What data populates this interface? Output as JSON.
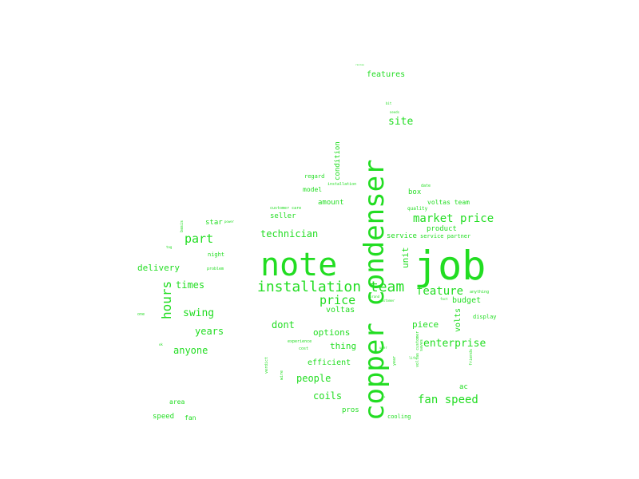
{
  "style": {
    "word_color": "#22dd22",
    "background": "#ffffff"
  },
  "words": [
    {
      "text": "copper condenser"
    },
    {
      "text": "job"
    },
    {
      "text": "note"
    },
    {
      "text": "installation team"
    },
    {
      "text": "market price"
    },
    {
      "text": "fan speed"
    },
    {
      "text": "hours"
    },
    {
      "text": "price"
    },
    {
      "text": "part"
    },
    {
      "text": "feature"
    },
    {
      "text": "enterprise"
    },
    {
      "text": "site"
    },
    {
      "text": "technician"
    },
    {
      "text": "swing"
    },
    {
      "text": "times"
    },
    {
      "text": "delivery"
    },
    {
      "text": "years"
    },
    {
      "text": "anyone"
    },
    {
      "text": "dont"
    },
    {
      "text": "options"
    },
    {
      "text": "people"
    },
    {
      "text": "coils"
    },
    {
      "text": "thing"
    },
    {
      "text": "piece"
    },
    {
      "text": "efficient"
    },
    {
      "text": "features"
    },
    {
      "text": "budget"
    },
    {
      "text": "voltas"
    },
    {
      "text": "unit"
    },
    {
      "text": "seller"
    },
    {
      "text": "amount"
    },
    {
      "text": "model"
    },
    {
      "text": "product"
    },
    {
      "text": "service"
    },
    {
      "text": "box"
    },
    {
      "text": "volts"
    },
    {
      "text": "ac"
    },
    {
      "text": "pros"
    },
    {
      "text": "area"
    },
    {
      "text": "speed"
    },
    {
      "text": "fan"
    },
    {
      "text": "star"
    },
    {
      "text": "night"
    },
    {
      "text": "condition"
    },
    {
      "text": "regard"
    },
    {
      "text": "voltas team"
    },
    {
      "text": "quality"
    },
    {
      "text": "service partner"
    },
    {
      "text": "display"
    },
    {
      "text": "cooling"
    },
    {
      "text": "customer care"
    },
    {
      "text": "installation"
    },
    {
      "text": "experience"
    },
    {
      "text": "cost"
    },
    {
      "text": "anything"
    },
    {
      "text": "one"
    },
    {
      "text": "problem"
    },
    {
      "text": "date"
    },
    {
      "text": "voltas customer"
    },
    {
      "text": "year"
    },
    {
      "text": "verdict"
    },
    {
      "text": "wire"
    },
    {
      "text": "basis"
    },
    {
      "text": "friends"
    },
    {
      "text": "saves"
    },
    {
      "text": "bit"
    },
    {
      "text": "needs"
    },
    {
      "text": "review"
    },
    {
      "text": "tag"
    },
    {
      "text": "brand"
    },
    {
      "text": "fact"
    },
    {
      "text": "ads"
    },
    {
      "text": "user"
    },
    {
      "text": "ok"
    },
    {
      "text": "life"
    },
    {
      "text": "power"
    },
    {
      "text": "customer"
    }
  ]
}
